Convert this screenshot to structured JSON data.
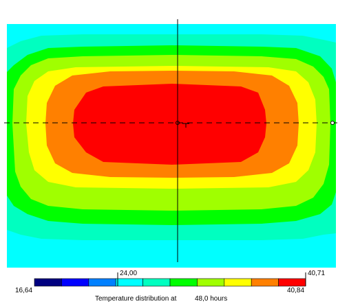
{
  "chart_data": {
    "type": "heatmap",
    "title": "Temperature distribution at",
    "time_value": "48,0 hours",
    "scale": {
      "min_label": "16,64",
      "max_label": "40,84",
      "marker_mid_label": "24,00",
      "marker_max_label": "40,71",
      "min": 16.64,
      "max": 40.84,
      "marker_mid": 24.0,
      "marker_max": 40.71
    },
    "color_bands": [
      "#000080",
      "#0000ff",
      "#0080ff",
      "#00ffff",
      "#00ffc0",
      "#00ff00",
      "#a0ff00",
      "#ffff00",
      "#ff8000",
      "#ff0000"
    ],
    "contour_fill_order": [
      "#00ffff",
      "#00ffc0",
      "#00ff00",
      "#a0ff00",
      "#ffff00",
      "#ff8000",
      "#ff0000"
    ],
    "crosshair": "dashed horizontal and solid vertical through centre"
  }
}
